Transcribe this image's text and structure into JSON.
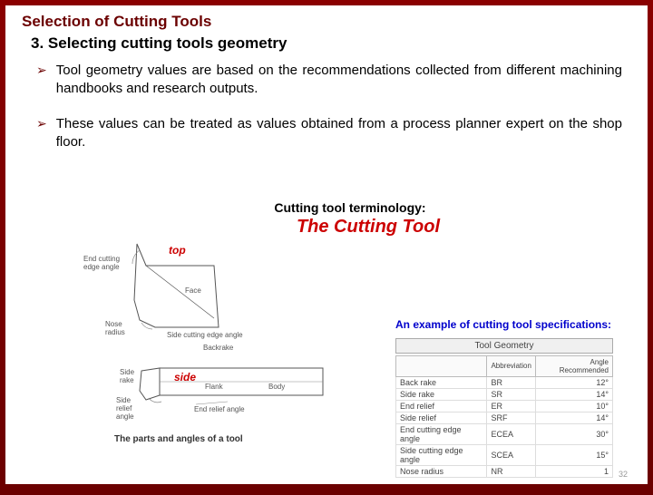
{
  "header": {
    "main_title": "Selection of Cutting Tools",
    "subtitle": "3. Selecting cutting tools geometry"
  },
  "bullets": [
    "Tool geometry values are based on the recommendations collected from different machining handbooks and research outputs.",
    "These values can be treated as values obtained from a process planner expert on the shop floor."
  ],
  "figure": {
    "terminology_label": "Cutting tool terminology:",
    "title": "The Cutting Tool",
    "view_labels": {
      "top": "top",
      "side": "side"
    },
    "diagram_labels": {
      "end_cutting": "End cutting\nedge angle",
      "face": "Face",
      "nose_radius": "Nose\nradius",
      "side_cutting": "Side cutting edge angle",
      "backrake": "Backrake",
      "side_rake": "Side\nrake",
      "flank": "Flank",
      "body": "Body",
      "side_relief": "Side\nrelief\nangle",
      "end_relief": "End relief angle"
    },
    "caption": "The parts and angles of a tool",
    "spec_heading": "An example of cutting tool specifications:",
    "table_title": "Tool Geometry",
    "table_headers": [
      "",
      "Abbreviation",
      "Angle Recommended"
    ],
    "table_rows": [
      [
        "Back rake",
        "BR",
        "12°"
      ],
      [
        "Side rake",
        "SR",
        "14°"
      ],
      [
        "End relief",
        "ER",
        "10°"
      ],
      [
        "Side relief",
        "SRF",
        "14°"
      ],
      [
        "End cutting edge angle",
        "ECEA",
        "30°"
      ],
      [
        "Side cutting edge angle",
        "SCEA",
        "15°"
      ],
      [
        "Nose radius",
        "NR",
        "1"
      ]
    ]
  },
  "page_number": "32",
  "colors": {
    "accent": "#6b0000",
    "red_title": "#cc0000",
    "blue_heading": "#0000cc"
  }
}
